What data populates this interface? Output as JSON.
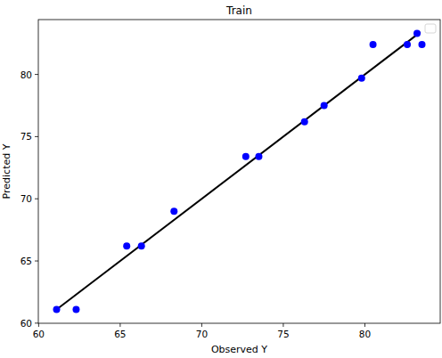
{
  "chart_data": {
    "type": "scatter",
    "title": "Train",
    "x_label": "Observed Y",
    "y_label": "Predicted Y",
    "x": [
      61.1,
      62.3,
      65.4,
      66.3,
      68.3,
      72.7,
      73.5,
      76.3,
      77.5,
      79.8,
      80.5,
      82.6,
      83.2,
      83.5
    ],
    "series": [
      {
        "type": "scatter",
        "color": "#0000ff",
        "marker": "circle",
        "values": [
          61.1,
          61.1,
          66.2,
          66.2,
          69.0,
          73.4,
          73.4,
          76.2,
          77.5,
          79.7,
          82.4,
          82.4,
          83.3,
          82.4
        ]
      },
      {
        "type": "line",
        "color": "#000000",
        "line_style": "solid",
        "x": [
          61.1,
          83.4
        ],
        "values": [
          61.1,
          83.4
        ]
      }
    ],
    "xlim": [
      59.98,
      84.62
    ],
    "ylim": [
      59.99,
      84.41
    ],
    "xticks": [
      60,
      65,
      70,
      75,
      80
    ],
    "yticks": [
      60,
      65,
      70,
      75,
      80
    ],
    "legend": "upper right",
    "grid": false
  }
}
